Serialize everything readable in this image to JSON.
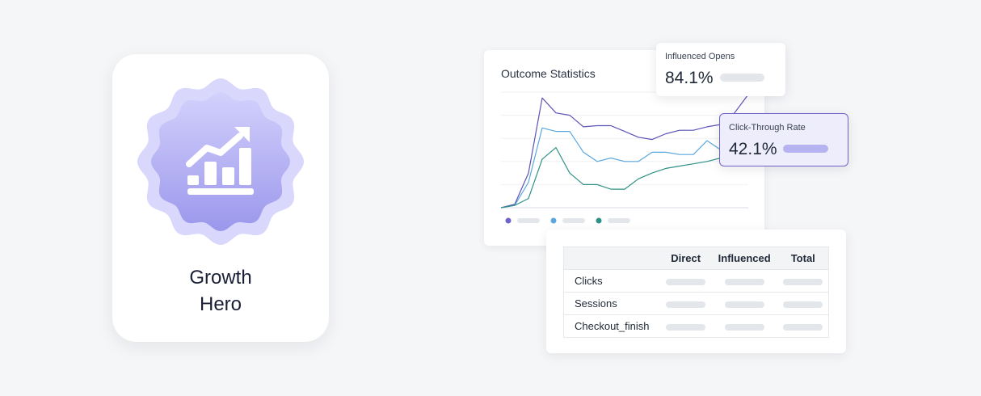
{
  "badge": {
    "title_line1": "Growth",
    "title_line2": "Hero",
    "icon": "growth-chart-icon",
    "colors": {
      "seal_outer": "#d9d7fb",
      "seal_inner_top": "#cfcdfb",
      "seal_inner_bottom": "#9f9bee"
    }
  },
  "stats": {
    "title": "Outcome Statistics",
    "legend_colors": [
      "#6d64c9",
      "#5aa7dd",
      "#2f9185"
    ]
  },
  "chart_data": {
    "type": "line",
    "title": "Outcome Statistics",
    "xlabel": "",
    "ylabel": "",
    "x": [
      0,
      1,
      2,
      3,
      4,
      5,
      6,
      7,
      8,
      9,
      10,
      11,
      12,
      13,
      14,
      15,
      16,
      17,
      18
    ],
    "ylim": [
      0,
      100
    ],
    "grid": true,
    "legend": "bottom-left",
    "series": [
      {
        "color": "#5c52b8",
        "values": [
          0,
          3,
          30,
          95,
          82,
          80,
          70,
          71,
          71,
          66,
          61,
          59,
          64,
          67,
          67,
          70,
          72,
          82,
          98
        ]
      },
      {
        "color": "#5aa7dd",
        "values": [
          0,
          2,
          22,
          69,
          66,
          66,
          48,
          40,
          43,
          40,
          40,
          48,
          48,
          46,
          46,
          58,
          50,
          60,
          62
        ]
      },
      {
        "color": "#2f9185",
        "values": [
          0,
          2,
          8,
          42,
          52,
          30,
          20,
          20,
          16,
          16,
          25,
          30,
          34,
          36,
          38,
          40,
          43,
          44,
          45
        ]
      }
    ]
  },
  "metrics": {
    "opens": {
      "label": "Influenced Opens",
      "value": "84.1%"
    },
    "ctr": {
      "label": "Click-Through Rate",
      "value": "42.1%"
    }
  },
  "table": {
    "columns": [
      "",
      "Direct",
      "Influenced",
      "Total"
    ],
    "rows": [
      {
        "label": "Clicks"
      },
      {
        "label": "Sessions"
      },
      {
        "label": "Checkout_finish"
      }
    ]
  }
}
